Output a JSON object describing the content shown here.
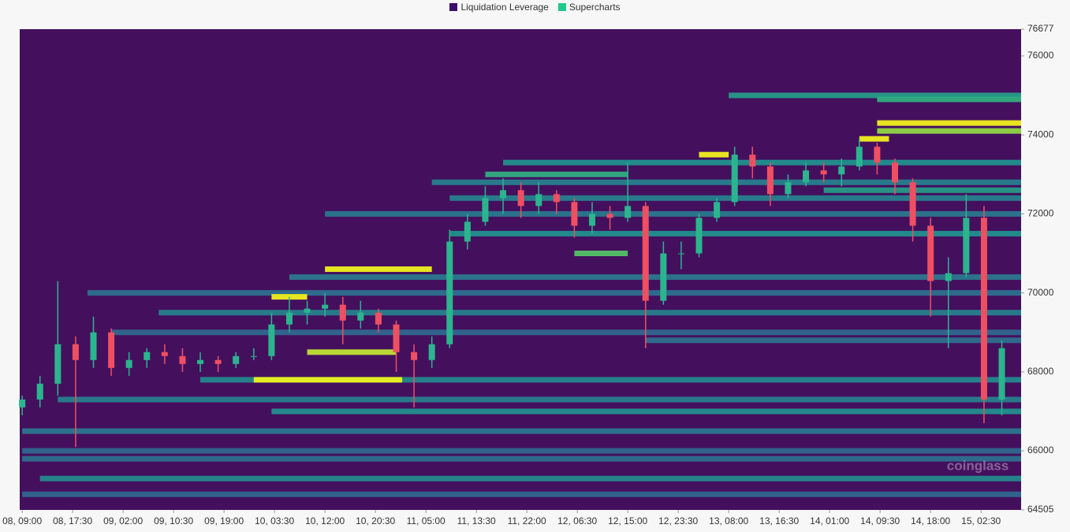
{
  "chart_data": {
    "type": "heatmap-candlestick",
    "legend": [
      {
        "name": "Liquidation Leverage",
        "color": "#3b0f6b"
      },
      {
        "name": "Supercharts",
        "color": "#1fc98a"
      }
    ],
    "watermark": "coinglass",
    "plot_color": "#44105e",
    "up_color": "#2bb58e",
    "down_color": "#ef4f62",
    "ylim": [
      64505,
      76677
    ],
    "yticks": [
      64505,
      66000,
      68000,
      70000,
      72000,
      74000,
      76000,
      76677
    ],
    "xlim": [
      "08, 08:35",
      "15, 09:15"
    ],
    "xticks": [
      "08, 09:00",
      "08, 17:30",
      "09, 02:00",
      "09, 10:30",
      "09, 19:00",
      "10, 03:30",
      "10, 12:00",
      "10, 20:30",
      "11, 05:00",
      "11, 13:30",
      "11, 22:00",
      "12, 06:30",
      "12, 15:00",
      "12, 23:30",
      "13, 08:00",
      "13, 16:30",
      "14, 01:00",
      "14, 09:30",
      "14, 18:00",
      "15, 02:30"
    ],
    "heatmap": [
      {
        "price": 75000,
        "start": "13, 08:00",
        "end": "15, 09:15",
        "intensity": 0.6
      },
      {
        "price": 74900,
        "start": "14, 09:00",
        "end": "15, 09:15",
        "intensity": 0.7
      },
      {
        "price": 74300,
        "start": "14, 09:00",
        "end": "15, 09:15",
        "intensity": 1
      },
      {
        "price": 74100,
        "start": "14, 09:00",
        "end": "15, 09:15",
        "intensity": 0.9
      },
      {
        "price": 73900,
        "start": "14, 06:00",
        "end": "14, 11:00",
        "intensity": 1
      },
      {
        "price": 73500,
        "start": "13, 03:00",
        "end": "13, 08:00",
        "intensity": 1
      },
      {
        "price": 73300,
        "start": "11, 18:00",
        "end": "15, 09:15",
        "intensity": 0.55
      },
      {
        "price": 73000,
        "start": "11, 15:00",
        "end": "12, 15:00",
        "intensity": 0.7
      },
      {
        "price": 72800,
        "start": "11, 06:00",
        "end": "15, 09:15",
        "intensity": 0.45
      },
      {
        "price": 72600,
        "start": "14, 00:00",
        "end": "15, 09:15",
        "intensity": 0.6
      },
      {
        "price": 72400,
        "start": "11, 09:00",
        "end": "15, 09:15",
        "intensity": 0.45
      },
      {
        "price": 72000,
        "start": "10, 12:00",
        "end": "15, 09:15",
        "intensity": 0.4
      },
      {
        "price": 71500,
        "start": "11, 09:00",
        "end": "15, 09:15",
        "intensity": 0.55
      },
      {
        "price": 71000,
        "start": "12, 06:00",
        "end": "12, 15:00",
        "intensity": 0.8
      },
      {
        "price": 70600,
        "start": "10, 12:00",
        "end": "11, 06:00",
        "intensity": 1
      },
      {
        "price": 70400,
        "start": "10, 06:00",
        "end": "15, 09:15",
        "intensity": 0.4
      },
      {
        "price": 70000,
        "start": "08, 20:00",
        "end": "15, 09:15",
        "intensity": 0.35
      },
      {
        "price": 69900,
        "start": "10, 03:00",
        "end": "10, 09:00",
        "intensity": 1
      },
      {
        "price": 69500,
        "start": "09, 08:00",
        "end": "15, 09:15",
        "intensity": 0.45
      },
      {
        "price": 69000,
        "start": "09, 00:00",
        "end": "15, 09:15",
        "intensity": 0.3
      },
      {
        "price": 68800,
        "start": "12, 18:00",
        "end": "15, 09:15",
        "intensity": 0.35
      },
      {
        "price": 68500,
        "start": "10, 09:00",
        "end": "11, 00:00",
        "intensity": 0.95
      },
      {
        "price": 67800,
        "start": "09, 15:00",
        "end": "15, 09:15",
        "intensity": 0.5
      },
      {
        "price": 67800,
        "start": "10, 00:00",
        "end": "11, 01:00",
        "intensity": 1
      },
      {
        "price": 67300,
        "start": "08, 15:00",
        "end": "15, 09:15",
        "intensity": 0.45
      },
      {
        "price": 67000,
        "start": "10, 03:00",
        "end": "15, 09:15",
        "intensity": 0.55
      },
      {
        "price": 66500,
        "start": "08, 09:00",
        "end": "15, 09:15",
        "intensity": 0.4
      },
      {
        "price": 66000,
        "start": "08, 09:00",
        "end": "15, 09:15",
        "intensity": 0.3
      },
      {
        "price": 65800,
        "start": "08, 09:00",
        "end": "15, 09:15",
        "intensity": 0.35
      },
      {
        "price": 65300,
        "start": "08, 12:00",
        "end": "15, 09:15",
        "intensity": 0.5
      },
      {
        "price": 64900,
        "start": "08, 09:00",
        "end": "15, 09:15",
        "intensity": 0.3
      }
    ],
    "candles": {
      "x": [
        "08, 09:00",
        "08, 12:00",
        "08, 15:00",
        "08, 18:00",
        "08, 21:00",
        "09, 00:00",
        "09, 03:00",
        "09, 06:00",
        "09, 09:00",
        "09, 12:00",
        "09, 15:00",
        "09, 18:00",
        "09, 21:00",
        "10, 00:00",
        "10, 03:00",
        "10, 06:00",
        "10, 09:00",
        "10, 12:00",
        "10, 15:00",
        "10, 18:00",
        "10, 21:00",
        "11, 00:00",
        "11, 03:00",
        "11, 06:00",
        "11, 09:00",
        "11, 12:00",
        "11, 15:00",
        "11, 18:00",
        "11, 21:00",
        "12, 00:00",
        "12, 03:00",
        "12, 06:00",
        "12, 09:00",
        "12, 12:00",
        "12, 15:00",
        "12, 18:00",
        "12, 21:00",
        "13, 00:00",
        "13, 03:00",
        "13, 06:00",
        "13, 09:00",
        "13, 12:00",
        "13, 15:00",
        "13, 18:00",
        "13, 21:00",
        "14, 00:00",
        "14, 03:00",
        "14, 06:00",
        "14, 09:00",
        "14, 12:00",
        "14, 15:00",
        "14, 18:00",
        "14, 21:00",
        "15, 00:00",
        "15, 03:00",
        "15, 06:00"
      ],
      "open": [
        67100,
        67300,
        67700,
        68700,
        68300,
        69000,
        68100,
        68300,
        68500,
        68400,
        68200,
        68300,
        68200,
        68400,
        68400,
        69200,
        69500,
        69600,
        69700,
        69300,
        69500,
        69200,
        68500,
        68300,
        68700,
        71300,
        71800,
        72400,
        72600,
        72200,
        72500,
        72300,
        71700,
        72000,
        71900,
        72200,
        69800,
        71000,
        71000,
        71900,
        72300,
        73500,
        73200,
        72500,
        72800,
        73100,
        73000,
        73200,
        73700,
        73300,
        72800,
        71700,
        70300,
        70500,
        71900,
        67300
      ],
      "high": [
        67400,
        67900,
        70300,
        68900,
        69400,
        69100,
        68500,
        68600,
        68700,
        68600,
        68500,
        68400,
        68500,
        68600,
        69500,
        69900,
        69800,
        70000,
        69900,
        69800,
        69600,
        69300,
        68700,
        68900,
        71600,
        72000,
        72700,
        72900,
        72800,
        72800,
        72600,
        72400,
        72300,
        72200,
        73300,
        72300,
        71300,
        71300,
        72000,
        72400,
        73700,
        73700,
        73300,
        73000,
        73300,
        73300,
        73400,
        73900,
        73800,
        73400,
        72900,
        71900,
        70900,
        72500,
        72200,
        68800
      ],
      "low": [
        66900,
        67100,
        67400,
        66100,
        68100,
        67900,
        67900,
        68100,
        68200,
        68000,
        68000,
        68000,
        68100,
        68300,
        68300,
        69000,
        69200,
        69400,
        68700,
        69100,
        69000,
        68000,
        67100,
        68100,
        68600,
        71100,
        71700,
        72000,
        71900,
        72000,
        72000,
        71400,
        71500,
        71600,
        71800,
        68600,
        69700,
        70600,
        70900,
        71800,
        72200,
        72900,
        72200,
        72400,
        72700,
        72800,
        72700,
        73100,
        73000,
        72500,
        71300,
        69400,
        68600,
        70400,
        66700,
        66900
      ],
      "close": [
        67300,
        67700,
        68700,
        68300,
        69000,
        68100,
        68300,
        68500,
        68400,
        68200,
        68300,
        68200,
        68400,
        68400,
        69200,
        69500,
        69600,
        69700,
        69300,
        69500,
        69200,
        68500,
        68300,
        68700,
        71300,
        71800,
        72400,
        72600,
        72200,
        72500,
        72300,
        71700,
        72000,
        71900,
        72200,
        69800,
        71000,
        71000,
        71900,
        72300,
        73500,
        73200,
        72500,
        72800,
        73100,
        73000,
        73200,
        73700,
        73300,
        72800,
        71700,
        70300,
        70500,
        71900,
        67300,
        68600
      ]
    }
  }
}
